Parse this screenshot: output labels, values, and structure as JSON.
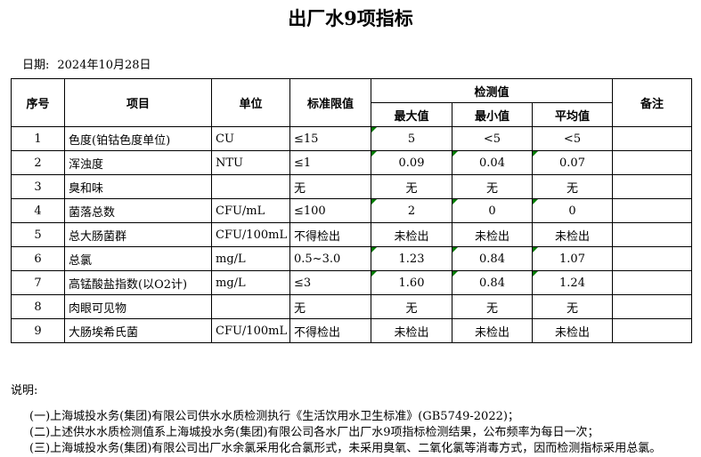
{
  "title": "出厂水9项指标",
  "date": {
    "label": "日期:",
    "value": "2024年10月28日"
  },
  "table": {
    "headers": {
      "index": "序号",
      "item": "项目",
      "unit": "单位",
      "limit": "标准限值",
      "detection": "检测值",
      "max": "最大值",
      "min": "最小值",
      "avg": "平均值",
      "remark": "备注"
    },
    "rows": [
      {
        "index": "1",
        "item": "色度(铂钴色度单位)",
        "unit": "CU",
        "limit": "≤15",
        "max": "5",
        "min": "<5",
        "avg": "<5",
        "remark": "",
        "flags": [
          "max"
        ]
      },
      {
        "index": "2",
        "item": "浑浊度",
        "unit": "NTU",
        "limit": "≤1",
        "max": "0.09",
        "min": "0.04",
        "avg": "0.07",
        "remark": "",
        "flags": [
          "max",
          "min",
          "avg"
        ]
      },
      {
        "index": "3",
        "item": "臭和味",
        "unit": "",
        "limit": "无",
        "max": "无",
        "min": "无",
        "avg": "无",
        "remark": "",
        "flags": []
      },
      {
        "index": "4",
        "item": "菌落总数",
        "unit": "CFU/mL",
        "limit": "≤100",
        "max": "2",
        "min": "0",
        "avg": "0",
        "remark": "",
        "flags": [
          "max",
          "min",
          "avg"
        ]
      },
      {
        "index": "5",
        "item": "总大肠菌群",
        "unit": "CFU/100mL",
        "limit": "不得检出",
        "max": "未检出",
        "min": "未检出",
        "avg": "未检出",
        "remark": "",
        "flags": []
      },
      {
        "index": "6",
        "item": "总氯",
        "unit": "mg/L",
        "limit": "0.5~3.0",
        "max": "1.23",
        "min": "0.84",
        "avg": "1.07",
        "remark": "",
        "flags": [
          "max",
          "min",
          "avg"
        ]
      },
      {
        "index": "7",
        "item": "高锰酸盐指数(以O2计)",
        "unit": "mg/L",
        "limit": "≤3",
        "max": "1.60",
        "min": "0.84",
        "avg": "1.24",
        "remark": "",
        "flags": [
          "max",
          "min",
          "avg"
        ]
      },
      {
        "index": "8",
        "item": "肉眼可见物",
        "unit": "",
        "limit": "无",
        "max": "无",
        "min": "无",
        "avg": "无",
        "remark": "",
        "flags": []
      },
      {
        "index": "9",
        "item": "大肠埃希氏菌",
        "unit": "CFU/100mL",
        "limit": "不得检出",
        "max": "未检出",
        "min": "未检出",
        "avg": "未检出",
        "remark": "",
        "flags": []
      }
    ]
  },
  "notes": {
    "label": "说明:",
    "lines": [
      "(一)上海城投水务(集团)有限公司供水水质检测执行《生活饮用水卫生标准》(GB5749-2022)；",
      "(二)上述供水水质检测值系上海城投水务(集团)有限公司各水厂出厂水9项指标检测结果，公布频率为每日一次；",
      "(三)上海城投水务(集团)有限公司出厂水余氯采用化合氯形式，未采用臭氧、二氧化氯等消毒方式，因而检测指标采用总氯。"
    ]
  },
  "colors": {
    "flag_green": "#007a00",
    "border": "#000000"
  }
}
